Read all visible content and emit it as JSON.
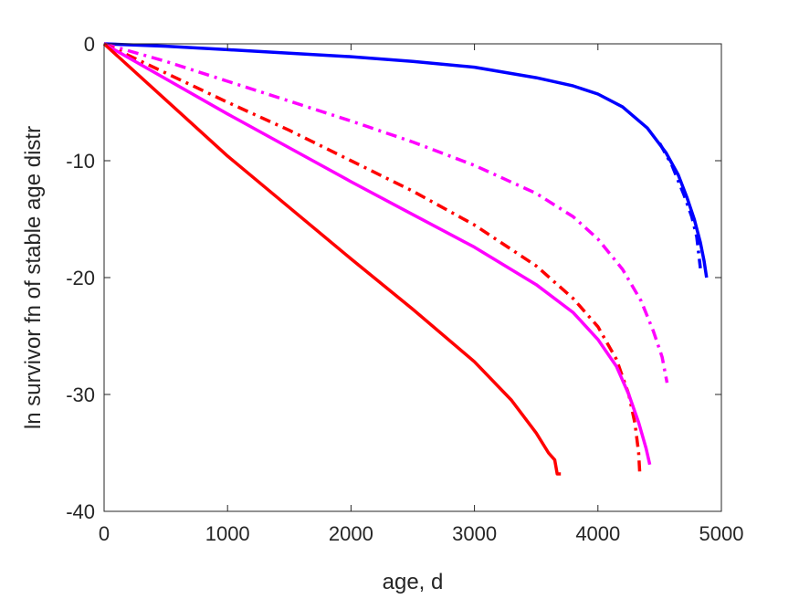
{
  "chart_data": {
    "type": "line",
    "xlabel": "age, d",
    "ylabel": "ln survivor fn of stable age distr",
    "xlim": [
      0,
      5000
    ],
    "ylim": [
      -40,
      0
    ],
    "xticks": [
      0,
      1000,
      2000,
      3000,
      4000,
      5000
    ],
    "yticks": [
      0,
      -10,
      -20,
      -30,
      -40
    ],
    "grid": false,
    "legend": "none",
    "series": [
      {
        "color": "#0000ff",
        "style": "solid",
        "x": [
          0,
          500,
          1000,
          1500,
          2000,
          2500,
          3000,
          3500,
          3800,
          4000,
          4200,
          4400,
          4550,
          4650,
          4720,
          4780,
          4830,
          4860,
          4880
        ],
        "y": [
          0,
          -0.2,
          -0.5,
          -0.8,
          -1.1,
          -1.5,
          -2.0,
          -2.9,
          -3.6,
          -4.3,
          -5.4,
          -7.2,
          -9.3,
          -11.2,
          -13.1,
          -15.0,
          -17.0,
          -18.6,
          -20.0
        ]
      },
      {
        "color": "#0000ff",
        "style": "dashdot",
        "x": [
          4500,
          4600,
          4700,
          4760,
          4800,
          4830
        ],
        "y": [
          -8.5,
          -10.4,
          -13.0,
          -14.8,
          -16.5,
          -19.2
        ]
      },
      {
        "color": "#ff00ff",
        "style": "dashdot",
        "x": [
          0,
          500,
          1000,
          1500,
          2000,
          2500,
          3000,
          3500,
          3800,
          4000,
          4200,
          4350,
          4450,
          4520,
          4560
        ],
        "y": [
          0,
          -1.5,
          -3.2,
          -4.9,
          -6.6,
          -8.4,
          -10.4,
          -12.8,
          -14.8,
          -16.7,
          -19.3,
          -22.0,
          -24.6,
          -26.8,
          -29.0
        ]
      },
      {
        "color": "#ff0000",
        "style": "dashdot",
        "x": [
          0,
          500,
          1000,
          1500,
          2000,
          2500,
          3000,
          3500,
          3800,
          4000,
          4150,
          4250,
          4300,
          4330,
          4340
        ],
        "y": [
          0,
          -2.5,
          -5.0,
          -7.4,
          -10.0,
          -12.6,
          -15.5,
          -19.0,
          -21.8,
          -24.2,
          -27.0,
          -30.0,
          -32.5,
          -35.0,
          -37.0
        ]
      },
      {
        "color": "#ff00ff",
        "style": "solid",
        "x": [
          0,
          500,
          1000,
          1500,
          2000,
          2500,
          3000,
          3500,
          3800,
          4000,
          4150,
          4250,
          4330,
          4390,
          4420
        ],
        "y": [
          0,
          -3.0,
          -6.0,
          -8.9,
          -11.8,
          -14.6,
          -17.4,
          -20.6,
          -23.0,
          -25.3,
          -27.6,
          -30.0,
          -32.4,
          -34.6,
          -36.0
        ]
      },
      {
        "color": "#ff0000",
        "style": "solid",
        "x": [
          0,
          500,
          1000,
          1500,
          2000,
          2500,
          3000,
          3300,
          3500,
          3600,
          3650,
          3670,
          3690,
          3700
        ],
        "y": [
          0,
          -4.8,
          -9.6,
          -14.0,
          -18.4,
          -22.7,
          -27.2,
          -30.5,
          -33.3,
          -35.0,
          -35.6,
          -36.8,
          -36.8,
          -36.8
        ]
      }
    ]
  }
}
